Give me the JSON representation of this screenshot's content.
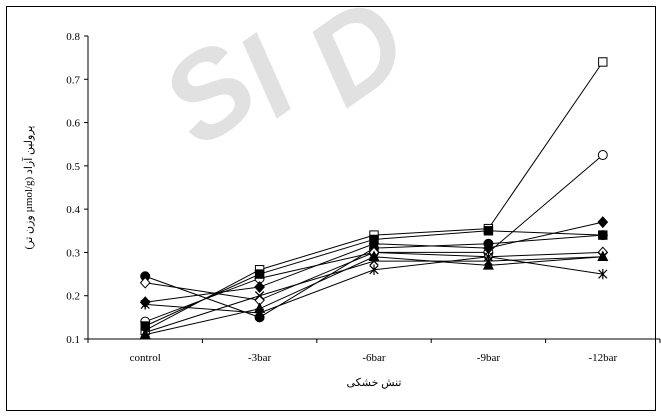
{
  "chart_data": {
    "type": "line",
    "title": "",
    "xlabel": "تنش خشکی",
    "ylabel": "پرولین آزاد (µmol/g وزن تر)",
    "categories": [
      "control",
      "-3bar",
      "-6bar",
      "-9bar",
      "-12bar"
    ],
    "yticks": [
      "0.1",
      "0.2",
      "0.3",
      "0.4",
      "0.5",
      "0.6",
      "0.7",
      "0.8"
    ],
    "ylim": [
      0.1,
      0.8
    ],
    "grid": false,
    "legend": "none",
    "series": [
      {
        "marker": "open-square",
        "values": [
          0.12,
          0.26,
          0.34,
          0.355,
          0.74
        ]
      },
      {
        "marker": "open-circle",
        "values": [
          0.14,
          0.24,
          0.3,
          0.3,
          0.525
        ]
      },
      {
        "marker": "filled-diamond",
        "values": [
          0.185,
          0.22,
          0.32,
          0.31,
          0.37
        ]
      },
      {
        "marker": "filled-square",
        "values": [
          0.13,
          0.25,
          0.33,
          0.35,
          0.34
        ]
      },
      {
        "marker": "filled-circle",
        "values": [
          0.245,
          0.15,
          0.31,
          0.32,
          0.34
        ]
      },
      {
        "marker": "open-diamond",
        "values": [
          0.23,
          0.19,
          0.3,
          0.29,
          0.3
        ]
      },
      {
        "marker": "filled-triangle",
        "values": [
          0.11,
          0.17,
          0.29,
          0.27,
          0.29
        ]
      },
      {
        "marker": "cross",
        "values": [
          0.115,
          0.2,
          0.28,
          0.28,
          0.29
        ]
      },
      {
        "marker": "asterisk",
        "values": [
          0.18,
          0.16,
          0.26,
          0.29,
          0.25
        ]
      }
    ],
    "colors": {
      "line": "#000000",
      "marker": "#000000",
      "watermark": "#c8c8c8"
    }
  },
  "watermark": {
    "text": "SID"
  }
}
